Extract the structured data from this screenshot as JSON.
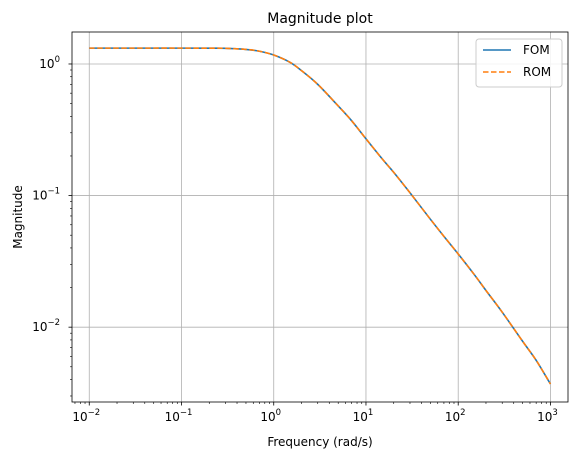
{
  "chart_data": {
    "type": "line",
    "title": "Magnitude plot",
    "xlabel": "Frequency (rad/s)",
    "ylabel": "Magnitude",
    "xscale": "log",
    "yscale": "log",
    "xlim": [
      0.0065,
      1550
    ],
    "ylim": [
      0.0027,
      1.75
    ],
    "grid": true,
    "legend_position": "top-right",
    "x_ticks": [
      {
        "value": 0.01,
        "base": "10",
        "exp": "−2"
      },
      {
        "value": 0.1,
        "base": "10",
        "exp": "−1"
      },
      {
        "value": 1,
        "base": "10",
        "exp": "0"
      },
      {
        "value": 10,
        "base": "10",
        "exp": "1"
      },
      {
        "value": 100,
        "base": "10",
        "exp": "2"
      },
      {
        "value": 1000,
        "base": "10",
        "exp": "3"
      }
    ],
    "y_ticks": [
      {
        "value": 0.01,
        "base": "10",
        "exp": "−2"
      },
      {
        "value": 0.1,
        "base": "10",
        "exp": "−1"
      },
      {
        "value": 1,
        "base": "10",
        "exp": "0"
      }
    ],
    "series": [
      {
        "name": "FOM",
        "color": "#1f77b4",
        "style": "solid",
        "x": [
          0.01,
          0.03,
          0.1,
          0.2,
          0.3,
          0.5,
          0.7,
          1,
          1.5,
          2,
          3,
          5,
          7,
          10,
          15,
          20,
          30,
          50,
          70,
          100,
          150,
          200,
          300,
          500,
          700,
          1000
        ],
        "y": [
          1.32,
          1.32,
          1.32,
          1.318,
          1.315,
          1.29,
          1.25,
          1.17,
          1.03,
          0.89,
          0.7,
          0.48,
          0.37,
          0.27,
          0.19,
          0.15,
          0.105,
          0.066,
          0.049,
          0.036,
          0.025,
          0.019,
          0.013,
          0.0078,
          0.0056,
          0.0037
        ]
      },
      {
        "name": "ROM",
        "color": "#ff7f0e",
        "style": "dashed",
        "x": [
          0.01,
          0.03,
          0.1,
          0.2,
          0.3,
          0.5,
          0.7,
          1,
          1.5,
          2,
          3,
          5,
          7,
          10,
          15,
          20,
          30,
          50,
          70,
          100,
          150,
          200,
          300,
          500,
          700,
          1000
        ],
        "y": [
          1.32,
          1.32,
          1.32,
          1.318,
          1.315,
          1.29,
          1.25,
          1.17,
          1.03,
          0.89,
          0.7,
          0.48,
          0.37,
          0.27,
          0.19,
          0.15,
          0.105,
          0.066,
          0.049,
          0.036,
          0.025,
          0.019,
          0.013,
          0.0078,
          0.0056,
          0.0037
        ]
      }
    ]
  }
}
